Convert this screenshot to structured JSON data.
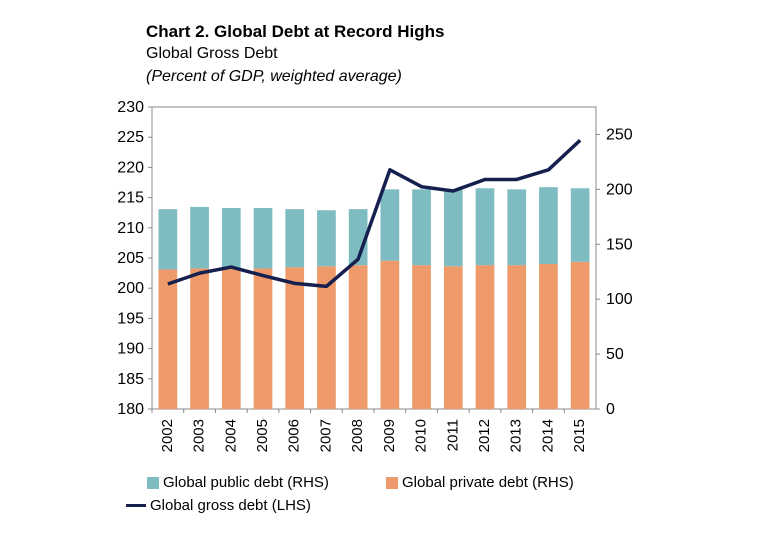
{
  "title": "Chart 2. Global Debt at Record Highs",
  "subtitle": "Global Gross Debt",
  "unit_note": "(Percent of GDP, weighted average)",
  "colors": {
    "public": "#7fbcc1",
    "private": "#ee9a6a",
    "gross": "#15204f"
  },
  "chart_data": {
    "type": "bar",
    "stacked": true,
    "categories": [
      "2002",
      "2003",
      "2004",
      "2005",
      "2006",
      "2007",
      "2008",
      "2009",
      "2010",
      "2011",
      "2012",
      "2013",
      "2014",
      "2015"
    ],
    "series": [
      {
        "name": "Global public debt (RHS)",
        "axis": "right",
        "type": "bar",
        "values": [
          55,
          56,
          55,
          55,
          53,
          51,
          51,
          65,
          69,
          70,
          70,
          69,
          70,
          67
        ]
      },
      {
        "name": "Global private debt (RHS)",
        "axis": "right",
        "type": "bar",
        "values": [
          127,
          128,
          128,
          128,
          129,
          130,
          131,
          135,
          131,
          130,
          131,
          131,
          132,
          134
        ]
      },
      {
        "name": "Global gross debt (LHS)",
        "axis": "left",
        "type": "line",
        "values": [
          200.7,
          202.5,
          203.5,
          202.1,
          200.8,
          200.3,
          204.8,
          219.6,
          216.8,
          216.1,
          218.0,
          218.0,
          219.6,
          224.5
        ]
      }
    ],
    "left_axis": {
      "ylim": [
        180,
        230
      ],
      "ticks": [
        "180",
        "185",
        "190",
        "195",
        "200",
        "205",
        "210",
        "215",
        "220",
        "225",
        "230"
      ]
    },
    "right_axis": {
      "ylim": [
        0,
        275
      ],
      "ticks": [
        "0",
        "50",
        "100",
        "150",
        "200",
        "250"
      ]
    },
    "grid": false,
    "legend_position": "bottom"
  }
}
